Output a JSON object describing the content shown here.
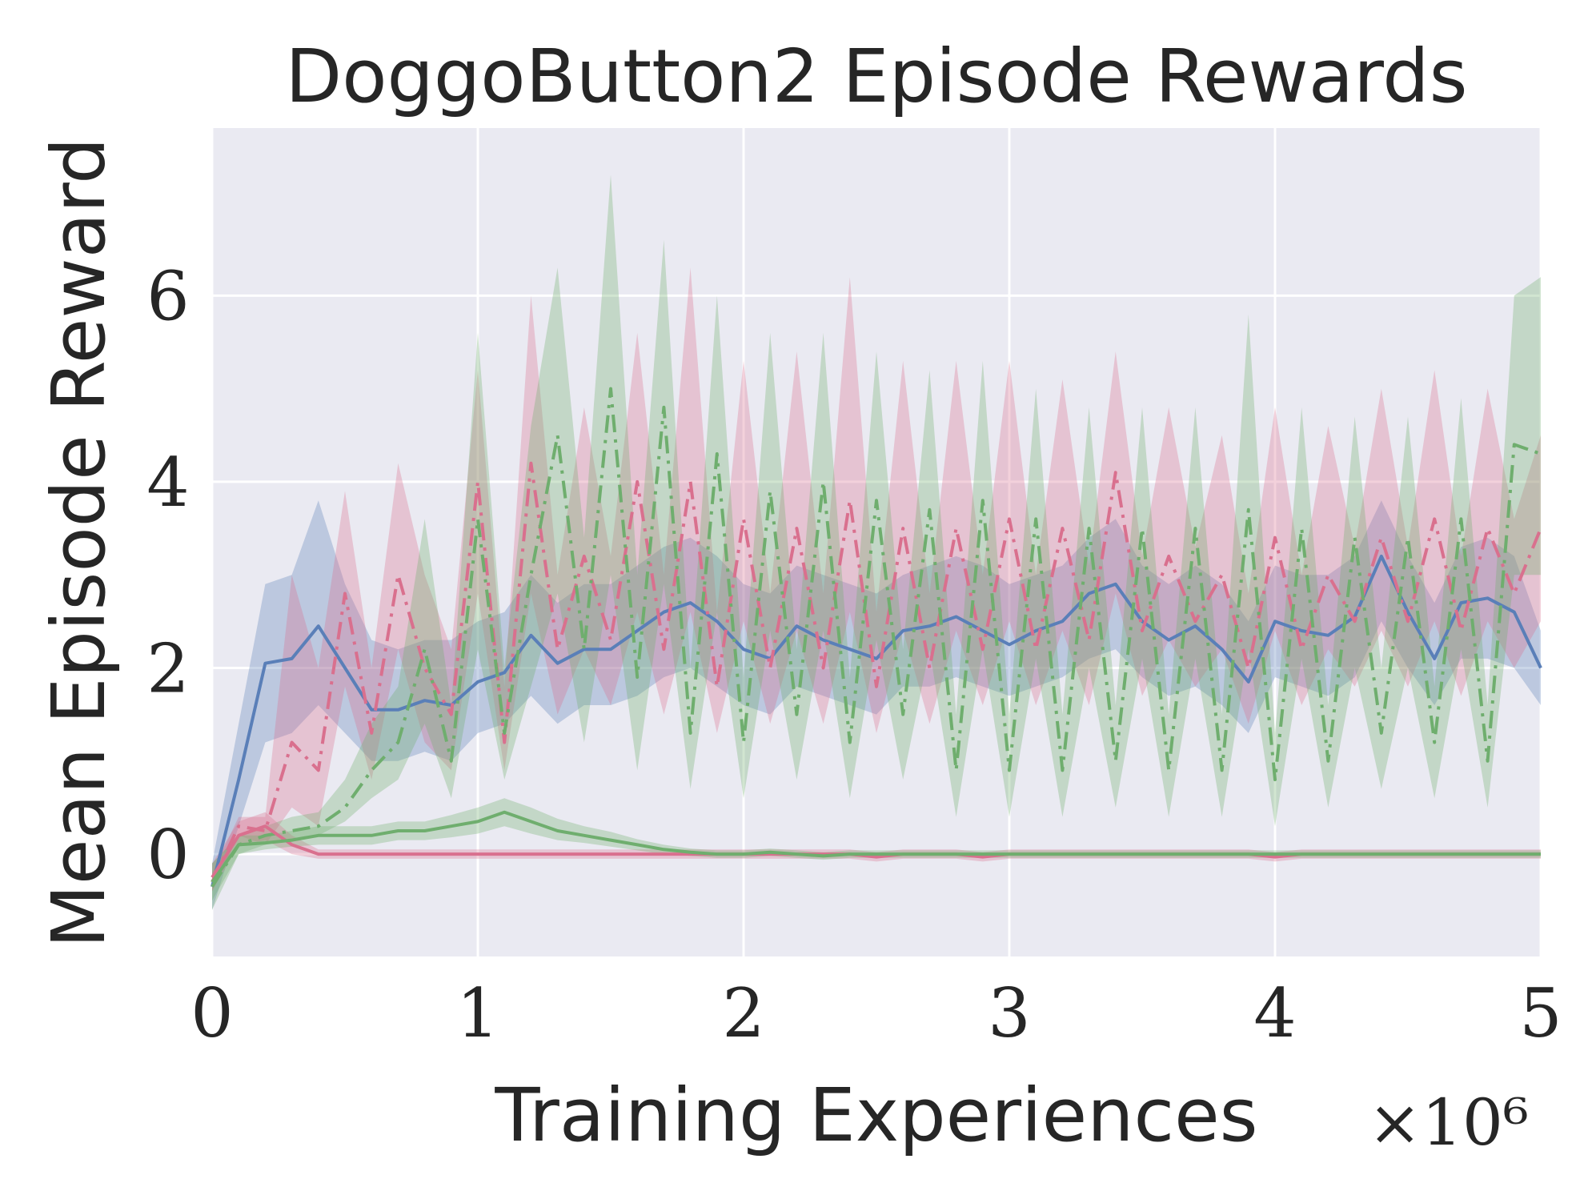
{
  "chart_data": {
    "type": "line",
    "title": "DoggoButton2 Episode Rewards",
    "xlabel": "Training Experiences",
    "ylabel": "Mean Episode Reward",
    "x_offset_label": "×10⁶",
    "xlim": [
      0,
      5
    ],
    "ylim": [
      -1.1,
      7.8
    ],
    "xticks": [
      0,
      1,
      2,
      3,
      4,
      5
    ],
    "xtick_labels": [
      "0",
      "1",
      "2",
      "3",
      "4",
      "5"
    ],
    "yticks": [
      0,
      2,
      4,
      6
    ],
    "ytick_labels": [
      "0",
      "2",
      "4",
      "6"
    ],
    "grid": true,
    "legend": "none",
    "x": [
      0,
      0.1,
      0.2,
      0.3,
      0.4,
      0.5,
      0.6,
      0.7,
      0.8,
      0.9,
      1.0,
      1.1,
      1.2,
      1.3,
      1.4,
      1.5,
      1.6,
      1.7,
      1.8,
      1.9,
      2.0,
      2.1,
      2.2,
      2.3,
      2.4,
      2.5,
      2.6,
      2.7,
      2.8,
      2.9,
      3.0,
      3.1,
      3.2,
      3.3,
      3.4,
      3.5,
      3.6,
      3.7,
      3.8,
      3.9,
      4.0,
      4.1,
      4.2,
      4.3,
      4.4,
      4.5,
      4.6,
      4.7,
      4.8,
      4.9,
      5.0
    ],
    "series": [
      {
        "color": "#5a7fb8",
        "style": "solid",
        "values": [
          -0.35,
          0.8,
          2.05,
          2.1,
          2.45,
          2.0,
          1.55,
          1.55,
          1.65,
          1.6,
          1.85,
          1.95,
          2.35,
          2.05,
          2.2,
          2.2,
          2.4,
          2.6,
          2.7,
          2.5,
          2.2,
          2.1,
          2.45,
          2.3,
          2.2,
          2.1,
          2.4,
          2.45,
          2.55,
          2.4,
          2.25,
          2.4,
          2.5,
          2.8,
          2.9,
          2.5,
          2.3,
          2.45,
          2.2,
          1.85,
          2.5,
          2.4,
          2.35,
          2.55,
          3.2,
          2.6,
          2.1,
          2.7,
          2.75,
          2.6,
          2.0
        ],
        "lower": [
          -0.6,
          0.3,
          1.2,
          1.3,
          1.6,
          1.3,
          1.0,
          1.0,
          1.1,
          1.0,
          1.3,
          1.4,
          1.7,
          1.4,
          1.6,
          1.6,
          1.7,
          1.9,
          2.0,
          1.8,
          1.6,
          1.5,
          1.8,
          1.7,
          1.6,
          1.5,
          1.8,
          1.8,
          1.9,
          1.8,
          1.7,
          1.8,
          1.9,
          2.1,
          2.2,
          1.9,
          1.7,
          1.8,
          1.6,
          1.3,
          1.9,
          1.8,
          1.7,
          1.9,
          2.5,
          2.0,
          1.6,
          2.1,
          2.1,
          2.0,
          1.6
        ],
        "upper": [
          -0.1,
          1.4,
          2.9,
          3.0,
          3.8,
          2.9,
          2.3,
          2.2,
          2.3,
          2.3,
          2.5,
          2.6,
          3.0,
          2.7,
          2.9,
          2.9,
          3.1,
          3.3,
          3.4,
          3.2,
          2.9,
          2.8,
          3.1,
          3.0,
          2.9,
          2.8,
          3.0,
          3.1,
          3.2,
          3.1,
          2.9,
          3.0,
          3.1,
          3.4,
          3.6,
          3.1,
          2.9,
          3.1,
          2.9,
          2.5,
          3.1,
          3.0,
          3.0,
          3.2,
          3.8,
          3.2,
          2.7,
          3.3,
          3.4,
          3.2,
          2.4
        ]
      },
      {
        "color": "#d9708e",
        "style": "dashdot",
        "values": [
          -0.3,
          0.3,
          0.25,
          1.2,
          0.9,
          2.8,
          1.3,
          3.0,
          2.0,
          1.5,
          4.0,
          1.2,
          4.2,
          2.2,
          3.2,
          2.3,
          4.0,
          2.2,
          4.0,
          1.8,
          3.6,
          2.0,
          3.5,
          2.0,
          3.8,
          1.8,
          3.5,
          2.0,
          3.5,
          2.2,
          3.6,
          2.2,
          3.5,
          2.3,
          4.1,
          2.4,
          3.2,
          2.5,
          3.0,
          2.0,
          3.4,
          2.2,
          3.0,
          2.5,
          3.4,
          2.5,
          3.6,
          2.4,
          3.5,
          2.8,
          3.5
        ],
        "lower": [
          -0.4,
          0.2,
          0.1,
          0.5,
          0.3,
          1.8,
          0.8,
          2.2,
          1.2,
          0.9,
          2.8,
          0.9,
          2.8,
          1.5,
          2.2,
          1.6,
          2.6,
          1.5,
          2.6,
          1.3,
          2.5,
          1.4,
          2.4,
          1.4,
          2.6,
          1.3,
          2.4,
          1.4,
          2.4,
          1.6,
          2.5,
          1.6,
          2.4,
          1.6,
          2.8,
          1.7,
          2.3,
          1.8,
          2.2,
          1.4,
          2.4,
          1.6,
          2.2,
          1.8,
          2.4,
          1.8,
          2.5,
          1.7,
          2.5,
          2.0,
          2.5
        ],
        "upper": [
          -0.2,
          0.4,
          0.4,
          3.0,
          2.0,
          3.9,
          2.0,
          4.2,
          3.0,
          2.2,
          5.2,
          1.8,
          6.0,
          3.0,
          4.8,
          3.2,
          5.6,
          3.0,
          6.3,
          2.6,
          5.3,
          2.8,
          5.4,
          2.8,
          6.2,
          2.6,
          5.3,
          2.8,
          5.3,
          3.0,
          5.3,
          3.0,
          5.1,
          3.1,
          5.4,
          3.2,
          4.8,
          3.3,
          4.5,
          2.8,
          4.8,
          3.0,
          4.6,
          3.3,
          5.0,
          3.3,
          5.2,
          3.2,
          5.0,
          3.6,
          4.5
        ]
      },
      {
        "color": "#6fae6e",
        "style": "dashdot",
        "values": [
          -0.35,
          0.1,
          0.2,
          0.25,
          0.3,
          0.5,
          0.9,
          1.2,
          2.2,
          1.0,
          3.6,
          1.3,
          3.0,
          4.5,
          2.2,
          5.0,
          1.9,
          4.8,
          1.3,
          4.3,
          1.2,
          3.9,
          1.5,
          4.0,
          1.2,
          3.8,
          1.5,
          3.7,
          0.9,
          3.8,
          0.9,
          3.6,
          0.9,
          3.5,
          1.0,
          3.5,
          0.9,
          3.5,
          0.9,
          3.7,
          0.8,
          3.5,
          1.0,
          3.4,
          1.3,
          3.4,
          1.2,
          3.6,
          1.0,
          4.4,
          4.3
        ],
        "lower": [
          -0.6,
          0.0,
          0.1,
          0.15,
          0.2,
          0.35,
          0.6,
          0.8,
          1.4,
          0.6,
          2.2,
          0.8,
          1.8,
          2.8,
          1.2,
          3.0,
          0.9,
          2.9,
          0.7,
          2.6,
          0.6,
          2.4,
          0.8,
          2.4,
          0.6,
          2.3,
          0.8,
          2.2,
          0.4,
          2.2,
          0.4,
          2.1,
          0.4,
          2.0,
          0.5,
          2.1,
          0.4,
          2.1,
          0.4,
          2.2,
          0.3,
          2.1,
          0.5,
          2.0,
          0.7,
          2.0,
          0.6,
          2.2,
          0.5,
          3.0,
          3.0
        ],
        "upper": [
          -0.1,
          0.2,
          0.3,
          0.4,
          0.45,
          0.8,
          1.4,
          1.8,
          3.6,
          1.6,
          5.6,
          2.0,
          4.6,
          6.3,
          3.4,
          7.3,
          3.0,
          6.6,
          2.0,
          6.0,
          1.9,
          5.6,
          2.2,
          5.6,
          1.9,
          5.4,
          2.2,
          5.2,
          1.5,
          5.3,
          1.5,
          5.0,
          1.5,
          4.8,
          1.6,
          4.8,
          1.5,
          4.8,
          1.5,
          5.8,
          1.3,
          4.8,
          1.6,
          4.7,
          2.0,
          4.7,
          1.8,
          4.9,
          1.6,
          6.0,
          6.2
        ]
      },
      {
        "color": "#d9708e",
        "style": "solid",
        "values": [
          -0.25,
          0.2,
          0.3,
          0.1,
          0.0,
          0.0,
          0.0,
          0.0,
          0.0,
          0.0,
          0.0,
          0.0,
          0.0,
          0.0,
          0.0,
          0.0,
          0.0,
          0.0,
          0.0,
          0.0,
          0.0,
          0.0,
          0.0,
          0.0,
          0.0,
          -0.03,
          0.0,
          0.0,
          0.0,
          -0.03,
          0.0,
          0.0,
          0.0,
          0.0,
          0.0,
          0.0,
          0.0,
          0.0,
          0.0,
          0.0,
          -0.03,
          0.0,
          0.0,
          0.0,
          0.0,
          0.0,
          0.0,
          0.0,
          0.0,
          0.0,
          0.0
        ],
        "lower": [
          -0.4,
          0.1,
          0.15,
          0.0,
          -0.05,
          -0.05,
          -0.05,
          -0.05,
          -0.05,
          -0.05,
          -0.05,
          -0.05,
          -0.05,
          -0.05,
          -0.05,
          -0.05,
          -0.05,
          -0.05,
          -0.05,
          -0.05,
          -0.05,
          -0.05,
          -0.05,
          -0.05,
          -0.05,
          -0.08,
          -0.05,
          -0.05,
          -0.05,
          -0.08,
          -0.05,
          -0.05,
          -0.05,
          -0.05,
          -0.05,
          -0.05,
          -0.05,
          -0.05,
          -0.05,
          -0.05,
          -0.08,
          -0.05,
          -0.05,
          -0.05,
          -0.05,
          -0.05,
          -0.05,
          -0.05,
          -0.05,
          -0.05,
          -0.05
        ],
        "upper": [
          -0.1,
          0.35,
          0.45,
          0.2,
          0.05,
          0.05,
          0.05,
          0.05,
          0.05,
          0.05,
          0.05,
          0.05,
          0.05,
          0.05,
          0.05,
          0.05,
          0.05,
          0.05,
          0.05,
          0.05,
          0.05,
          0.05,
          0.05,
          0.05,
          0.05,
          0.02,
          0.05,
          0.05,
          0.05,
          0.02,
          0.05,
          0.05,
          0.05,
          0.05,
          0.05,
          0.05,
          0.05,
          0.05,
          0.05,
          0.05,
          0.02,
          0.05,
          0.05,
          0.05,
          0.05,
          0.05,
          0.05,
          0.05,
          0.05,
          0.05,
          0.05
        ]
      },
      {
        "color": "#6fae6e",
        "style": "solid",
        "values": [
          -0.3,
          0.1,
          0.12,
          0.15,
          0.2,
          0.2,
          0.2,
          0.25,
          0.25,
          0.3,
          0.35,
          0.45,
          0.35,
          0.25,
          0.2,
          0.15,
          0.1,
          0.05,
          0.02,
          0.0,
          0.0,
          0.02,
          0.0,
          -0.02,
          0.0,
          0.0,
          0.0,
          0.0,
          0.0,
          0.0,
          0.0,
          0.0,
          0.0,
          0.0,
          0.0,
          0.0,
          0.0,
          0.0,
          0.0,
          0.0,
          0.0,
          0.0,
          0.0,
          0.0,
          0.0,
          0.0,
          0.0,
          0.0,
          0.0,
          0.0,
          0.0
        ],
        "lower": [
          -0.5,
          0.0,
          0.05,
          0.08,
          0.1,
          0.1,
          0.1,
          0.15,
          0.15,
          0.18,
          0.22,
          0.3,
          0.22,
          0.15,
          0.12,
          0.08,
          0.04,
          0.0,
          -0.02,
          -0.04,
          -0.04,
          -0.02,
          -0.04,
          -0.06,
          -0.04,
          -0.04,
          -0.04,
          -0.04,
          -0.04,
          -0.04,
          -0.04,
          -0.04,
          -0.04,
          -0.04,
          -0.04,
          -0.04,
          -0.04,
          -0.04,
          -0.04,
          -0.04,
          -0.04,
          -0.04,
          -0.04,
          -0.04,
          -0.04,
          -0.04,
          -0.04,
          -0.04,
          -0.04,
          -0.04,
          -0.04
        ],
        "upper": [
          -0.1,
          0.2,
          0.2,
          0.25,
          0.3,
          0.3,
          0.3,
          0.35,
          0.35,
          0.42,
          0.5,
          0.6,
          0.5,
          0.38,
          0.3,
          0.24,
          0.16,
          0.1,
          0.06,
          0.04,
          0.04,
          0.06,
          0.04,
          0.02,
          0.04,
          0.04,
          0.04,
          0.04,
          0.04,
          0.04,
          0.04,
          0.04,
          0.04,
          0.04,
          0.04,
          0.04,
          0.04,
          0.04,
          0.04,
          0.04,
          0.04,
          0.04,
          0.04,
          0.04,
          0.04,
          0.04,
          0.04,
          0.04,
          0.04,
          0.04,
          0.04
        ]
      }
    ]
  }
}
